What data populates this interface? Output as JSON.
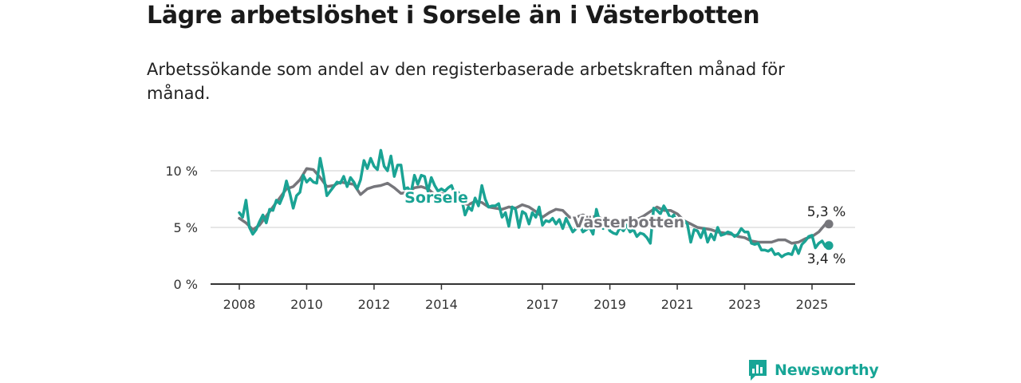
{
  "title": "Lägre arbetslöshet i Sorsele än i Västerbotten",
  "subtitle": "Arbetssökande som andel av den registerbaserade arbetskraften månad för månad.",
  "brand": {
    "name": "Newsworthy",
    "icon": "newsworthy-logo-icon"
  },
  "colors": {
    "sorsele": "#1aa394",
    "vasterbotten": "#76767b",
    "grid": "#dddddd",
    "axis": "#333333"
  },
  "chart_data": {
    "type": "line",
    "title": "",
    "xlabel": "",
    "ylabel": "",
    "x_ticks": [
      "2008",
      "2010",
      "2012",
      "2014",
      "2017",
      "2019",
      "2021",
      "2023",
      "2025"
    ],
    "y_ticks": [
      "0 %",
      "5 %",
      "10 %"
    ],
    "ylim": [
      0,
      11
    ],
    "grid": true,
    "legend": "inline labels",
    "series": [
      {
        "name": "Sorsele",
        "points": [
          [
            2008.0,
            6.3
          ],
          [
            2008.1,
            5.9
          ],
          [
            2008.2,
            7.4
          ],
          [
            2008.3,
            5.0
          ],
          [
            2008.4,
            4.4
          ],
          [
            2008.5,
            4.8
          ],
          [
            2008.6,
            5.5
          ],
          [
            2008.7,
            6.1
          ],
          [
            2008.8,
            5.4
          ],
          [
            2008.9,
            6.6
          ],
          [
            2009.0,
            6.5
          ],
          [
            2009.1,
            7.4
          ],
          [
            2009.2,
            7.1
          ],
          [
            2009.3,
            7.8
          ],
          [
            2009.4,
            9.1
          ],
          [
            2009.5,
            8.0
          ],
          [
            2009.6,
            6.7
          ],
          [
            2009.7,
            7.8
          ],
          [
            2009.8,
            8.1
          ],
          [
            2009.9,
            9.6
          ],
          [
            2010.0,
            9.0
          ],
          [
            2010.1,
            9.3
          ],
          [
            2010.2,
            9.0
          ],
          [
            2010.3,
            8.9
          ],
          [
            2010.4,
            11.1
          ],
          [
            2010.5,
            9.6
          ],
          [
            2010.6,
            7.8
          ],
          [
            2010.7,
            8.2
          ],
          [
            2010.8,
            8.6
          ],
          [
            2010.9,
            9.0
          ],
          [
            2011.0,
            8.9
          ],
          [
            2011.1,
            9.5
          ],
          [
            2011.2,
            8.6
          ],
          [
            2011.3,
            9.4
          ],
          [
            2011.4,
            9.0
          ],
          [
            2011.5,
            8.4
          ],
          [
            2011.6,
            9.2
          ],
          [
            2011.7,
            10.9
          ],
          [
            2011.8,
            10.2
          ],
          [
            2011.9,
            11.1
          ],
          [
            2012.0,
            10.4
          ],
          [
            2012.1,
            10.1
          ],
          [
            2012.2,
            11.8
          ],
          [
            2012.3,
            10.4
          ],
          [
            2012.4,
            10.0
          ],
          [
            2012.5,
            11.3
          ],
          [
            2012.6,
            9.5
          ],
          [
            2012.7,
            10.5
          ],
          [
            2012.8,
            10.5
          ],
          [
            2012.9,
            8.4
          ],
          [
            2013.0,
            8.5
          ],
          [
            2013.1,
            8.1
          ],
          [
            2013.2,
            9.6
          ],
          [
            2013.3,
            8.8
          ],
          [
            2013.4,
            9.6
          ],
          [
            2013.5,
            9.5
          ],
          [
            2013.6,
            8.2
          ],
          [
            2013.7,
            9.4
          ],
          [
            2013.8,
            8.7
          ],
          [
            2013.9,
            8.2
          ],
          [
            2014.0,
            8.4
          ],
          [
            2014.1,
            8.2
          ],
          [
            2014.2,
            8.5
          ],
          [
            2014.3,
            8.7
          ],
          [
            2014.4,
            7.9
          ],
          [
            2014.5,
            8.1
          ],
          [
            2014.6,
            7.5
          ],
          [
            2014.7,
            6.1
          ],
          [
            2014.8,
            6.8
          ],
          [
            2014.9,
            6.5
          ],
          [
            2015.0,
            7.6
          ],
          [
            2015.1,
            6.9
          ],
          [
            2015.2,
            8.7
          ],
          [
            2015.3,
            7.5
          ],
          [
            2015.4,
            6.8
          ],
          [
            2015.5,
            6.9
          ],
          [
            2015.6,
            6.9
          ],
          [
            2015.7,
            7.1
          ],
          [
            2015.8,
            5.9
          ],
          [
            2015.9,
            6.3
          ],
          [
            2016.0,
            5.1
          ],
          [
            2016.1,
            6.8
          ],
          [
            2016.2,
            6.6
          ],
          [
            2016.3,
            5.0
          ],
          [
            2016.4,
            6.4
          ],
          [
            2016.5,
            6.2
          ],
          [
            2016.6,
            5.3
          ],
          [
            2016.7,
            6.3
          ],
          [
            2016.8,
            5.9
          ],
          [
            2016.9,
            6.8
          ],
          [
            2017.0,
            5.2
          ],
          [
            2017.1,
            5.6
          ],
          [
            2017.2,
            5.5
          ],
          [
            2017.3,
            5.8
          ],
          [
            2017.4,
            5.3
          ],
          [
            2017.5,
            5.7
          ],
          [
            2017.6,
            4.9
          ],
          [
            2017.7,
            5.8
          ],
          [
            2017.8,
            5.2
          ],
          [
            2017.9,
            4.6
          ],
          [
            2018.0,
            4.9
          ],
          [
            2018.1,
            5.2
          ],
          [
            2018.2,
            4.6
          ],
          [
            2018.3,
            4.8
          ],
          [
            2018.4,
            5.0
          ],
          [
            2018.5,
            4.4
          ],
          [
            2018.6,
            6.6
          ],
          [
            2018.7,
            5.5
          ],
          [
            2018.8,
            4.9
          ],
          [
            2018.9,
            5.3
          ],
          [
            2019.0,
            4.7
          ],
          [
            2019.1,
            4.5
          ],
          [
            2019.2,
            4.4
          ],
          [
            2019.3,
            5.0
          ],
          [
            2019.4,
            4.7
          ],
          [
            2019.5,
            5.2
          ],
          [
            2019.6,
            4.6
          ],
          [
            2019.7,
            4.8
          ],
          [
            2019.8,
            4.2
          ],
          [
            2019.9,
            4.5
          ],
          [
            2020.0,
            4.4
          ],
          [
            2020.1,
            4.1
          ],
          [
            2020.2,
            3.6
          ],
          [
            2020.3,
            6.7
          ],
          [
            2020.4,
            6.5
          ],
          [
            2020.5,
            6.2
          ],
          [
            2020.6,
            6.9
          ],
          [
            2020.7,
            6.4
          ],
          [
            2020.8,
            5.8
          ],
          [
            2020.9,
            6.1
          ],
          [
            2021.0,
            5.2
          ],
          [
            2021.1,
            5.0
          ],
          [
            2021.2,
            5.6
          ],
          [
            2021.3,
            5.3
          ],
          [
            2021.4,
            3.7
          ],
          [
            2021.5,
            4.8
          ],
          [
            2021.6,
            4.7
          ],
          [
            2021.7,
            4.1
          ],
          [
            2021.8,
            4.9
          ],
          [
            2021.9,
            3.7
          ],
          [
            2022.0,
            4.4
          ],
          [
            2022.1,
            3.9
          ],
          [
            2022.2,
            5.0
          ],
          [
            2022.3,
            4.3
          ],
          [
            2022.4,
            4.4
          ],
          [
            2022.5,
            4.6
          ],
          [
            2022.6,
            4.5
          ],
          [
            2022.7,
            4.2
          ],
          [
            2022.8,
            4.4
          ],
          [
            2022.9,
            4.9
          ],
          [
            2023.0,
            4.6
          ],
          [
            2023.1,
            4.6
          ],
          [
            2023.2,
            3.6
          ],
          [
            2023.3,
            3.5
          ],
          [
            2023.4,
            3.6
          ],
          [
            2023.5,
            3.0
          ],
          [
            2023.6,
            3.0
          ],
          [
            2023.7,
            2.9
          ],
          [
            2023.8,
            3.1
          ],
          [
            2023.9,
            2.6
          ],
          [
            2024.0,
            2.7
          ],
          [
            2024.1,
            2.4
          ],
          [
            2024.2,
            2.6
          ],
          [
            2024.3,
            2.7
          ],
          [
            2024.4,
            2.6
          ],
          [
            2024.5,
            3.4
          ],
          [
            2024.6,
            2.7
          ],
          [
            2024.7,
            3.5
          ],
          [
            2024.8,
            3.8
          ],
          [
            2024.9,
            4.2
          ],
          [
            2025.0,
            4.3
          ],
          [
            2025.1,
            3.2
          ],
          [
            2025.2,
            3.6
          ],
          [
            2025.3,
            3.8
          ],
          [
            2025.4,
            3.3
          ],
          [
            2025.5,
            3.4
          ]
        ],
        "last_label": "3,4 %"
      },
      {
        "name": "Västerbotten",
        "points": [
          [
            2008.0,
            5.8
          ],
          [
            2008.2,
            5.4
          ],
          [
            2008.4,
            4.8
          ],
          [
            2008.6,
            5.2
          ],
          [
            2008.8,
            6.0
          ],
          [
            2009.0,
            6.8
          ],
          [
            2009.2,
            7.6
          ],
          [
            2009.4,
            8.4
          ],
          [
            2009.6,
            8.6
          ],
          [
            2009.8,
            9.2
          ],
          [
            2010.0,
            10.2
          ],
          [
            2010.2,
            10.1
          ],
          [
            2010.4,
            9.4
          ],
          [
            2010.6,
            8.6
          ],
          [
            2010.8,
            8.7
          ],
          [
            2011.0,
            9.0
          ],
          [
            2011.2,
            8.9
          ],
          [
            2011.4,
            8.8
          ],
          [
            2011.6,
            7.9
          ],
          [
            2011.8,
            8.4
          ],
          [
            2012.0,
            8.6
          ],
          [
            2012.2,
            8.7
          ],
          [
            2012.4,
            8.9
          ],
          [
            2012.6,
            8.5
          ],
          [
            2012.8,
            8.0
          ],
          [
            2013.0,
            8.1
          ],
          [
            2013.2,
            8.5
          ],
          [
            2013.4,
            8.6
          ],
          [
            2013.6,
            8.4
          ],
          [
            2013.8,
            7.9
          ],
          [
            2014.0,
            8.0
          ],
          [
            2014.2,
            7.8
          ],
          [
            2014.4,
            7.6
          ],
          [
            2014.6,
            7.2
          ],
          [
            2014.8,
            7.0
          ],
          [
            2015.0,
            7.3
          ],
          [
            2015.2,
            7.2
          ],
          [
            2015.4,
            6.8
          ],
          [
            2015.6,
            6.7
          ],
          [
            2015.8,
            6.6
          ],
          [
            2016.0,
            6.8
          ],
          [
            2016.2,
            6.7
          ],
          [
            2016.4,
            7.0
          ],
          [
            2016.6,
            6.8
          ],
          [
            2016.8,
            6.4
          ],
          [
            2017.0,
            5.9
          ],
          [
            2017.2,
            6.3
          ],
          [
            2017.4,
            6.6
          ],
          [
            2017.6,
            6.5
          ],
          [
            2017.8,
            5.9
          ],
          [
            2018.0,
            5.9
          ],
          [
            2018.2,
            6.1
          ],
          [
            2018.4,
            5.9
          ],
          [
            2018.6,
            6.0
          ],
          [
            2018.8,
            5.7
          ],
          [
            2019.0,
            5.5
          ],
          [
            2019.2,
            5.6
          ],
          [
            2019.4,
            5.7
          ],
          [
            2019.6,
            5.6
          ],
          [
            2019.8,
            5.7
          ],
          [
            2020.0,
            6.0
          ],
          [
            2020.2,
            6.4
          ],
          [
            2020.4,
            6.8
          ],
          [
            2020.6,
            6.5
          ],
          [
            2020.8,
            6.5
          ],
          [
            2021.0,
            6.2
          ],
          [
            2021.2,
            5.6
          ],
          [
            2021.4,
            5.3
          ],
          [
            2021.6,
            5.0
          ],
          [
            2021.8,
            4.9
          ],
          [
            2022.0,
            4.8
          ],
          [
            2022.2,
            4.6
          ],
          [
            2022.4,
            4.5
          ],
          [
            2022.6,
            4.4
          ],
          [
            2022.8,
            4.2
          ],
          [
            2023.0,
            4.1
          ],
          [
            2023.2,
            3.8
          ],
          [
            2023.4,
            3.7
          ],
          [
            2023.6,
            3.7
          ],
          [
            2023.8,
            3.7
          ],
          [
            2024.0,
            3.9
          ],
          [
            2024.2,
            3.9
          ],
          [
            2024.4,
            3.6
          ],
          [
            2024.6,
            3.7
          ],
          [
            2024.8,
            4.0
          ],
          [
            2025.0,
            4.2
          ],
          [
            2025.2,
            4.6
          ],
          [
            2025.4,
            5.3
          ],
          [
            2025.5,
            5.3
          ]
        ],
        "last_label": "5,3 %"
      }
    ]
  }
}
